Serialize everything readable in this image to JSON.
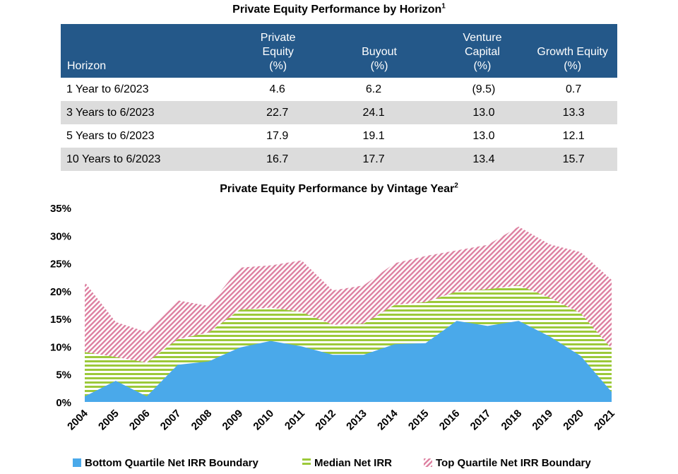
{
  "table": {
    "title": "Private Equity Performance by Horizon",
    "title_note": "1",
    "columns": [
      {
        "label": "Horizon",
        "lines": [
          "Horizon"
        ]
      },
      {
        "label": "Private Equity (%)",
        "lines": [
          "Private",
          "Equity",
          "(%)"
        ]
      },
      {
        "label": "Buyout (%)",
        "lines": [
          "Buyout",
          "(%)"
        ]
      },
      {
        "label": "Venture Capital (%)",
        "lines": [
          "Venture",
          "Capital",
          "(%)"
        ]
      },
      {
        "label": "Growth Equity (%)",
        "lines": [
          "Growth Equity",
          "(%)"
        ]
      }
    ],
    "rows": [
      [
        "1 Year to 6/2023",
        "4.6",
        "6.2",
        "(9.5)",
        "0.7"
      ],
      [
        "3 Years to 6/2023",
        "22.7",
        "24.1",
        "13.0",
        "13.3"
      ],
      [
        "5 Years to 6/2023",
        "17.9",
        "19.1",
        "13.0",
        "12.1"
      ],
      [
        "10 Years to 6/2023",
        "16.7",
        "17.7",
        "13.4",
        "15.7"
      ]
    ]
  },
  "chart_data": {
    "type": "area",
    "title": "Private Equity Performance by Vintage Year",
    "title_note": "2",
    "x": [
      "2004",
      "2005",
      "2006",
      "2007",
      "2008",
      "2009",
      "2010",
      "2011",
      "2012",
      "2013",
      "2014",
      "2015",
      "2016",
      "2017",
      "2018",
      "2019",
      "2020",
      "2021"
    ],
    "series": [
      {
        "name": "Bottom Quartile Net IRR Boundary",
        "values": [
          1.0,
          3.8,
          1.0,
          6.7,
          7.3,
          9.8,
          11.0,
          10.0,
          8.5,
          8.5,
          10.4,
          10.6,
          14.6,
          13.7,
          14.6,
          11.8,
          8.3,
          1.8
        ]
      },
      {
        "name": "Median Net IRR",
        "values": [
          9.0,
          8.1,
          7.1,
          11.3,
          12.5,
          16.6,
          17.0,
          16.2,
          13.9,
          14.1,
          17.5,
          18.0,
          19.9,
          20.3,
          21.0,
          18.8,
          16.0,
          9.6
        ]
      },
      {
        "name": "Top Quartile Net IRR Boundary",
        "values": [
          21.6,
          14.4,
          12.6,
          18.3,
          17.3,
          24.2,
          24.6,
          25.5,
          20.1,
          21.0,
          25.0,
          26.3,
          27.3,
          28.3,
          31.6,
          28.4,
          27.0,
          22.0
        ]
      }
    ],
    "y_ticks": [
      "0%",
      "5%",
      "10%",
      "15%",
      "20%",
      "25%",
      "30%",
      "35%"
    ],
    "ylim": [
      0,
      35
    ],
    "grid": false,
    "legend_position": "bottom",
    "colors": {
      "bottom": "#4aa9ea",
      "median": "#9cc93a",
      "top": "#dd7fa0"
    }
  }
}
